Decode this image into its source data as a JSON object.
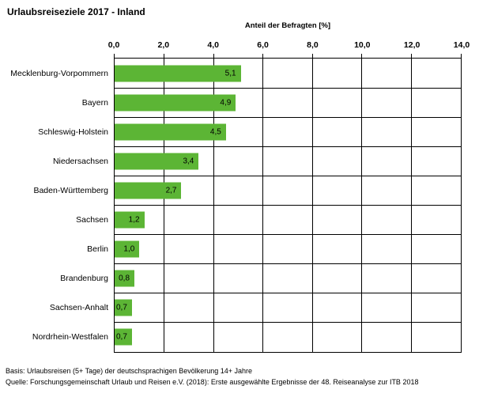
{
  "chart_data": {
    "type": "bar",
    "orientation": "horizontal",
    "title": "Urlaubsreiseziele 2017 - Inland",
    "xlabel": "Anteil der Befragten [%]",
    "categories": [
      "Mecklenburg-Vorpommern",
      "Bayern",
      "Schleswig-Holstein",
      "Niedersachsen",
      "Baden-Württemberg",
      "Sachsen",
      "Berlin",
      "Brandenburg",
      "Sachsen-Anhalt",
      "Nordrhein-Westfalen"
    ],
    "values": [
      5.1,
      4.9,
      4.5,
      3.4,
      2.7,
      1.2,
      1.0,
      0.8,
      0.7,
      0.7
    ],
    "value_labels": [
      "5,1",
      "4,9",
      "4,5",
      "3,4",
      "2,7",
      "1,2",
      "1,0",
      "0,8",
      "0,7",
      "0,7"
    ],
    "xlim": [
      0,
      14
    ],
    "xticks": [
      "0,0",
      "2,0",
      "4,0",
      "6,0",
      "8,0",
      "10,0",
      "12,0",
      "14,0"
    ],
    "grid": true,
    "legend": "none",
    "bar_color": "#5cb535",
    "text_color": "#000000",
    "gridline_color": "#000000"
  },
  "footer": {
    "line1": "Basis: Urlaubsreisen (5+ Tage) der deutschsprachigen Bevölkerung 14+ Jahre",
    "line2": "Quelle: Forschungsgemeinschaft Urlaub und Reisen e.V. (2018): Erste ausgewählte Ergebnisse der 48. Reiseanalyse zur ITB 2018"
  }
}
